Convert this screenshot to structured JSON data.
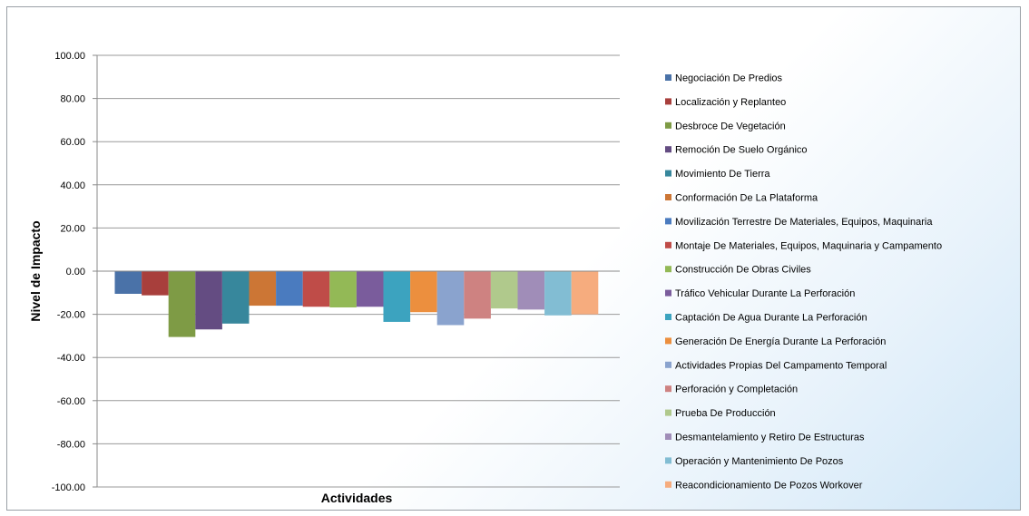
{
  "chart_data": {
    "type": "bar",
    "title": "",
    "xlabel": "Actividades",
    "ylabel": "Nivel de Impacto",
    "ylim": [
      -100,
      100
    ],
    "ytick_step": 20,
    "ytick_format": "0.00",
    "grid": true,
    "legend_position": "right",
    "series": [
      {
        "name": "Negociación De Predios",
        "value": -10.5,
        "color": "#4a72a8"
      },
      {
        "name": "Localización y Replanteo",
        "value": -11.2,
        "color": "#a83f3c"
      },
      {
        "name": "Desbroce De Vegetación",
        "value": -30.5,
        "color": "#7e9b45"
      },
      {
        "name": "Remoción De Suelo Orgánico",
        "value": -27.0,
        "color": "#644c82"
      },
      {
        "name": "Movimiento De Tierra",
        "value": -24.3,
        "color": "#37879c"
      },
      {
        "name": "Conformación De La Plataforma",
        "value": -16.0,
        "color": "#cc7635"
      },
      {
        "name": "Movilización Terrestre De Materiales, Equipos, Maquinaria",
        "value": -16.0,
        "color": "#4a7bbf"
      },
      {
        "name": "Montaje De Materiales, Equipos, Maquinaria y Campamento",
        "value": -16.5,
        "color": "#bf4c48"
      },
      {
        "name": "Construcción De Obras Civiles",
        "value": -16.8,
        "color": "#93b956"
      },
      {
        "name": "Tráfico Vehicular Durante La Perforación",
        "value": -16.5,
        "color": "#7a5c9c"
      },
      {
        "name": "Captación De Agua Durante La Perforación",
        "value": -23.5,
        "color": "#3ca3bf"
      },
      {
        "name": "Generación De Energía Durante La Perforación",
        "value": -19.0,
        "color": "#ec8f3e"
      },
      {
        "name": "Actividades Propias Del Campamento Temporal",
        "value": -25.0,
        "color": "#8aa3ce"
      },
      {
        "name": "Perforación y Completación",
        "value": -22.0,
        "color": "#ce8281"
      },
      {
        "name": "Prueba De Producción",
        "value": -17.3,
        "color": "#b0c98c"
      },
      {
        "name": "Desmantelamiento y Retiro De Estructuras",
        "value": -17.8,
        "color": "#a08db8"
      },
      {
        "name": "Operación y Mantenimiento De Pozos",
        "value": -20.5,
        "color": "#82bdd3"
      },
      {
        "name": "Reacondicionamiento De Pozos Workover",
        "value": -20.0,
        "color": "#f6ac7e"
      }
    ]
  }
}
